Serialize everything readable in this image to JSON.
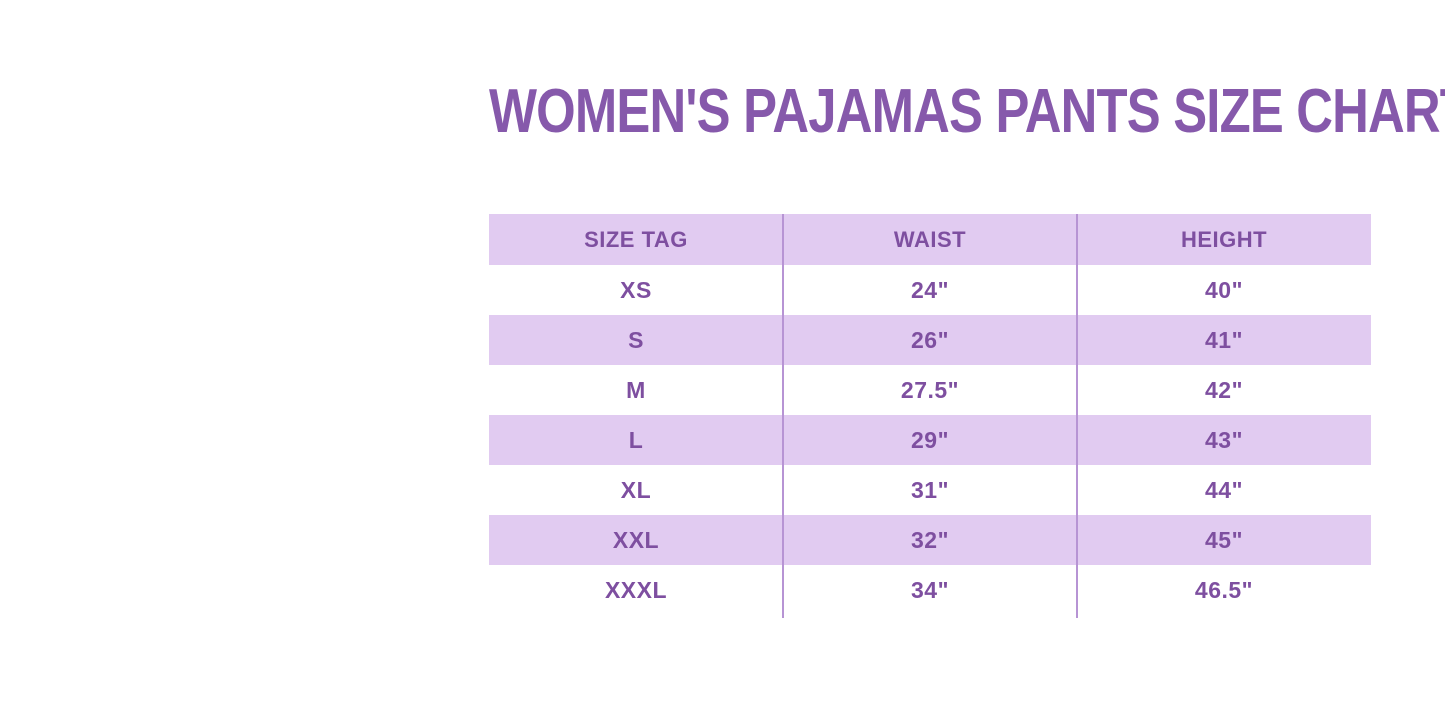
{
  "title": {
    "text": "WOMEN'S PAJAMAS PANTS SIZE CHART",
    "color": "#8659ab"
  },
  "chart_data": {
    "type": "table",
    "title": "WOMEN'S PAJAMAS PANTS SIZE CHART",
    "columns": [
      "SIZE TAG",
      "WAIST",
      "HEIGHT"
    ],
    "rows": [
      [
        "XS",
        "24\"",
        "40\""
      ],
      [
        "S",
        "26\"",
        "41\""
      ],
      [
        "M",
        "27.5\"",
        "42\""
      ],
      [
        "L",
        "29\"",
        "43\""
      ],
      [
        "XL",
        "31\"",
        "44\""
      ],
      [
        "XXL",
        "32\"",
        "45\""
      ],
      [
        "XXXL",
        "34\"",
        "46.5\""
      ]
    ],
    "layout": {
      "stripe_pattern": "header and alternate rows lavender, others white",
      "column_alignment": "center"
    }
  },
  "colors": {
    "background": "#ffffff",
    "title_text": "#8659ab",
    "table_text": "#7e4fa0",
    "stripe_band": "#e1cbf1",
    "column_divider": "#b794d4"
  }
}
